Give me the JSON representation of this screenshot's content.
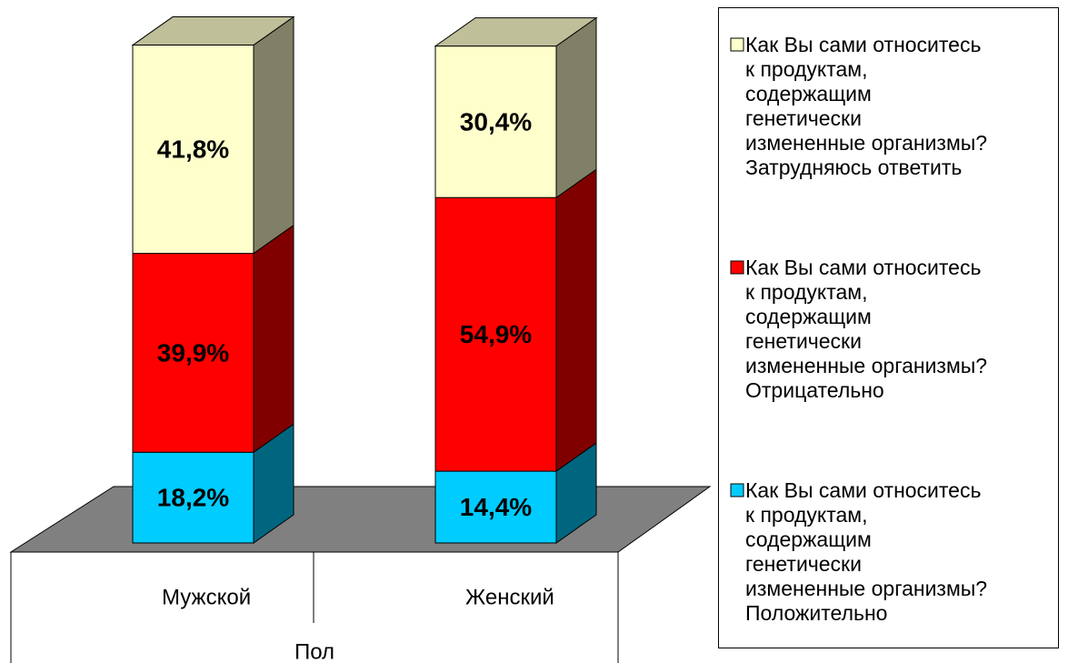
{
  "chart_data": {
    "type": "bar3d_stacked",
    "categories": [
      "Мужской",
      "Женский"
    ],
    "x_label": "Пол",
    "ylim": [
      0,
      100
    ],
    "series": [
      {
        "name": "Как Вы сами относитесь\nк продуктам,\nсодержащим\nгенетически\nизмененные организмы?\nПоложительно",
        "color": "#00ccff",
        "values": [
          18.2,
          14.4
        ],
        "value_labels": [
          "18,2%",
          "14,4%"
        ]
      },
      {
        "name": "Как Вы сами относитесь\nк продуктам,\nсодержащим\nгенетически\nизмененные организмы?\nОтрицательно",
        "color": "#ff0000",
        "values": [
          39.9,
          54.9
        ],
        "value_labels": [
          "39,9%",
          "54,9%"
        ]
      },
      {
        "name": "Как Вы сами относитесь\nк продуктам,\nсодержащим\nгенетически\nизмененные организмы?\nЗатрудняюсь ответить",
        "color": "#ffffcc",
        "values": [
          41.8,
          30.4
        ],
        "value_labels": [
          "41,8%",
          "30,4%"
        ]
      }
    ]
  }
}
